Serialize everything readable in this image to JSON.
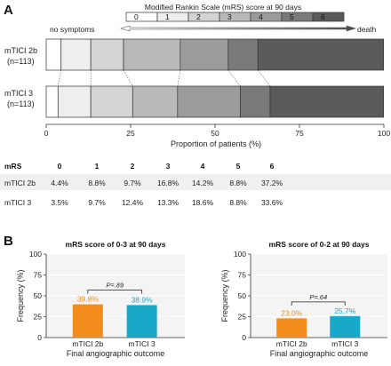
{
  "panel_a": {
    "letter": "A",
    "legend_title": "Modified Rankin Scale (mRS) score at 90 days",
    "legend_left": "no symptoms",
    "legend_right": "death",
    "x_axis_label": "Proportion of patients (%)",
    "row_labels": [
      {
        "line1": "mTICI 2b",
        "line2": "(n=113)"
      },
      {
        "line1": "mTICI 3",
        "line2": "(n=113)"
      }
    ],
    "colors": [
      "#ffffff",
      "#eeeeee",
      "#d4d4d4",
      "#b9b9b9",
      "#9b9b9b",
      "#7a7a7a",
      "#5a5a5a"
    ]
  },
  "table": {
    "header_label": "mRS",
    "columns": [
      "0",
      "1",
      "2",
      "3",
      "4",
      "5",
      "6"
    ],
    "rows": [
      {
        "label": "mTICI 2b",
        "values": [
          "4.4%",
          "8.8%",
          "9.7%",
          "16.8%",
          "14.2%",
          "8.8%",
          "37.2%"
        ]
      },
      {
        "label": "mTICI 3",
        "values": [
          "3.5%",
          "9.7%",
          "12.4%",
          "13.3%",
          "18.6%",
          "8.8%",
          "33.6%"
        ]
      }
    ]
  },
  "panel_b": {
    "letter": "B",
    "ylabel": "Frequency (%)",
    "xlabel": "Final angiographic outcome",
    "bar_colors": [
      "#f28c1c",
      "#1aa8c9"
    ]
  },
  "chart_data": [
    {
      "type": "bar",
      "orientation": "horizontal-stacked",
      "categories": [
        "mTICI 2b",
        "mTICI 3"
      ],
      "series": [
        {
          "name": "0",
          "values": [
            4.4,
            3.5
          ]
        },
        {
          "name": "1",
          "values": [
            8.8,
            9.7
          ]
        },
        {
          "name": "2",
          "values": [
            9.7,
            12.4
          ]
        },
        {
          "name": "3",
          "values": [
            16.8,
            13.3
          ]
        },
        {
          "name": "4",
          "values": [
            14.2,
            18.6
          ]
        },
        {
          "name": "5",
          "values": [
            8.8,
            8.8
          ]
        },
        {
          "name": "6",
          "values": [
            37.2,
            33.6
          ]
        }
      ],
      "title": "Modified Rankin Scale (mRS) score at 90 days",
      "xlabel": "Proportion of patients (%)",
      "xlim": [
        0,
        100
      ],
      "xticks": [
        "0",
        "25",
        "50",
        "75",
        "100"
      ],
      "legend_position": "top"
    },
    {
      "type": "bar",
      "title": "mRS score of 0-3 at 90 days",
      "categories": [
        "mTICI 2b",
        "mTICI 3"
      ],
      "values": [
        39.8,
        38.9
      ],
      "value_labels": [
        "39.8%",
        "38.9%"
      ],
      "p_value": "P=.89",
      "xlabel": "Final angiographic outcome",
      "ylabel": "Frequency (%)",
      "ylim": [
        0,
        100
      ],
      "yticks": [
        "0",
        "25",
        "50",
        "75",
        "100"
      ],
      "grid": true
    },
    {
      "type": "bar",
      "title": "mRS score of 0-2 at 90 days",
      "categories": [
        "mTICI 2b",
        "mTICI 3"
      ],
      "values": [
        23.0,
        25.7
      ],
      "value_labels": [
        "23.0%",
        "25.7%"
      ],
      "p_value": "P=.64",
      "xlabel": "Final angiographic outcome",
      "ylabel": "Frequency (%)",
      "ylim": [
        0,
        100
      ],
      "yticks": [
        "0",
        "25",
        "50",
        "75",
        "100"
      ],
      "grid": true
    }
  ]
}
